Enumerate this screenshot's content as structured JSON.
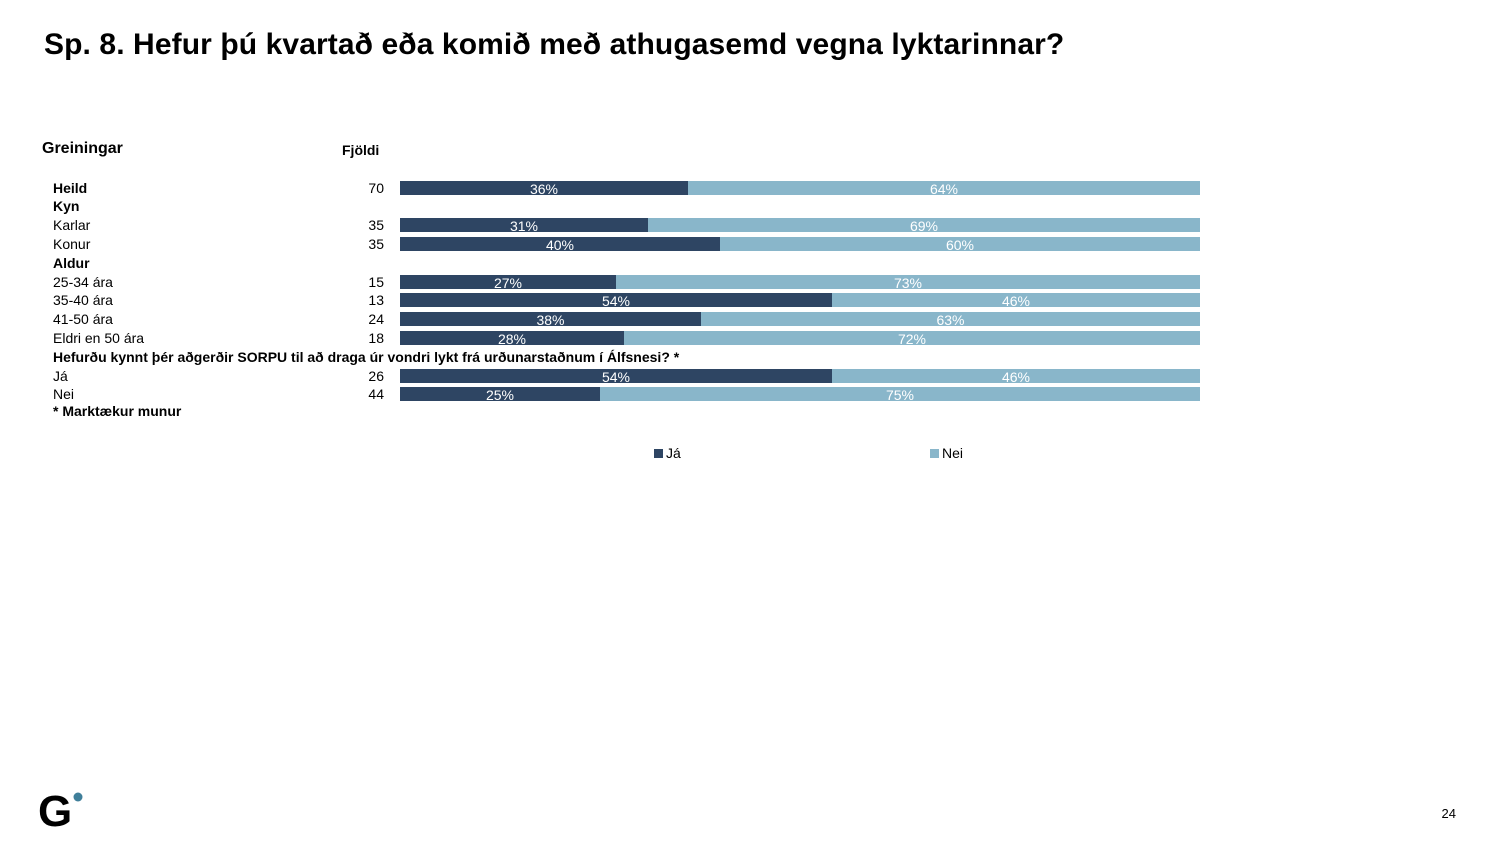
{
  "title": "Sp. 8. Hefur þú kvartað eða komið með athugasemd vegna lyktarinnar?",
  "headers": {
    "breakdowns": "Greiningar",
    "count": "Fjöldi"
  },
  "chart_data": {
    "type": "bar",
    "orientation": "horizontal",
    "stacked": true,
    "percent_stacked": true,
    "xlim": [
      0,
      100
    ],
    "legend_position": "bottom",
    "series": [
      {
        "name": "Já",
        "color": "#2e4563"
      },
      {
        "name": "Nei",
        "color": "#89b6ca"
      }
    ],
    "rows": [
      {
        "label": "Heild",
        "n": "70",
        "ja": 36,
        "nei": 64,
        "bold": true
      },
      {
        "label": "Kyn",
        "heading": true
      },
      {
        "label": "Karlar",
        "n": "35",
        "ja": 31,
        "nei": 69
      },
      {
        "label": "Konur",
        "n": "35",
        "ja": 40,
        "nei": 60
      },
      {
        "label": "Aldur",
        "heading": true
      },
      {
        "label": "25-34 ára",
        "n": "15",
        "ja": 27,
        "nei": 73
      },
      {
        "label": "35-40 ára",
        "n": "13",
        "ja": 54,
        "nei": 46
      },
      {
        "label": "41-50 ára",
        "n": "24",
        "ja": 38,
        "nei": 63
      },
      {
        "label": "Eldri en 50 ára",
        "n": "18",
        "ja": 28,
        "nei": 72
      },
      {
        "label": "Hefurðu kynnt þér aðgerðir SORPU til að draga úr vondri lykt frá urðunarstaðnum í Álfsnesi? *",
        "heading": true
      },
      {
        "label": "Já",
        "n": "26",
        "ja": 54,
        "nei": 46
      },
      {
        "label": "Nei",
        "n": "44",
        "ja": 25,
        "nei": 75
      }
    ]
  },
  "footnote": "* Marktækur munur",
  "legend": {
    "ja": "Já",
    "nei": "Nei"
  },
  "logo_letter": "G",
  "page_number": "24"
}
